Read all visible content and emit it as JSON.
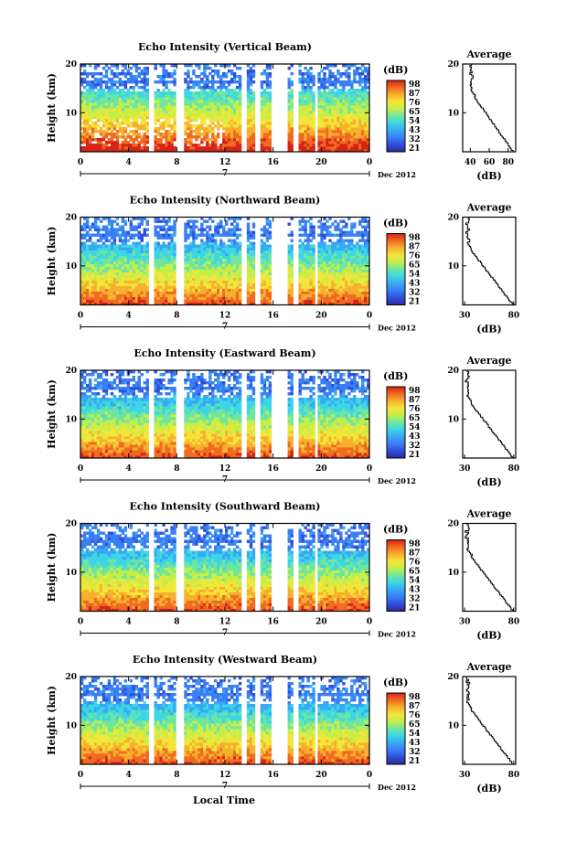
{
  "figure": {
    "xlabel": "Local Time",
    "date_label": "Dec 2012",
    "day_label": "7"
  },
  "colorbar": {
    "unit": "(dB)",
    "colors": [
      "#2b2a9c",
      "#2f4fd8",
      "#3a7ef5",
      "#39a8f2",
      "#3cd6e6",
      "#6fe6a0",
      "#c4ee4a",
      "#f2e63a",
      "#f7b02e",
      "#f06a22",
      "#d62418"
    ]
  },
  "chart_data": [
    {
      "type": "heatmap",
      "title": "Echo Intensity (Vertical Beam)",
      "xlabel": "",
      "ylabel": "Height (km)",
      "x_ticks": [
        "0",
        "4",
        "8",
        "12",
        "16",
        "20",
        "0"
      ],
      "y_ticks": [
        "20",
        "10"
      ],
      "xlim": [
        0,
        24
      ],
      "ylim": [
        2,
        20
      ],
      "colorbar_ticks": [
        "98",
        "87",
        "76",
        "65",
        "54",
        "43",
        "32",
        "21"
      ],
      "gaps_hours": [
        [
          5.6,
          6.2
        ],
        [
          8.0,
          8.5
        ],
        [
          13.3,
          13.8
        ],
        [
          14.6,
          15.0
        ],
        [
          15.8,
          17.3
        ],
        [
          17.7,
          18.1
        ],
        [
          19.4,
          19.8
        ]
      ],
      "profile": {
        "title": "Average",
        "xlabel": "(dB)",
        "x_ticks": [
          "40",
          "60",
          "80"
        ],
        "xlim": [
          32,
          88
        ],
        "y_ticks": [
          "20",
          "10"
        ],
        "surface_value": 86,
        "top_value": 40
      }
    },
    {
      "type": "heatmap",
      "title": "Echo Intensity (Northward Beam)",
      "xlabel": "",
      "ylabel": "Height (km)",
      "x_ticks": [
        "0",
        "4",
        "8",
        "12",
        "16",
        "20",
        "0"
      ],
      "y_ticks": [
        "20",
        "10"
      ],
      "xlim": [
        0,
        24
      ],
      "ylim": [
        2,
        20
      ],
      "colorbar_ticks": [
        "98",
        "87",
        "76",
        "65",
        "54",
        "43",
        "32",
        "21"
      ],
      "gaps_hours": [
        [
          5.6,
          6.2
        ],
        [
          8.0,
          8.5
        ],
        [
          13.3,
          13.8
        ],
        [
          14.6,
          15.0
        ],
        [
          15.8,
          17.3
        ],
        [
          17.7,
          18.1
        ],
        [
          19.4,
          19.8
        ]
      ],
      "profile": {
        "title": "Average",
        "xlabel": "(dB)",
        "x_ticks": [
          "30",
          "80"
        ],
        "xlim": [
          28,
          82
        ],
        "y_ticks": [
          "20",
          "10"
        ],
        "surface_value": 80,
        "top_value": 32
      }
    },
    {
      "type": "heatmap",
      "title": "Echo Intensity (Eastward Beam)",
      "xlabel": "",
      "ylabel": "Height (km)",
      "x_ticks": [
        "0",
        "4",
        "8",
        "12",
        "16",
        "20",
        "0"
      ],
      "y_ticks": [
        "20",
        "10"
      ],
      "xlim": [
        0,
        24
      ],
      "ylim": [
        2,
        20
      ],
      "colorbar_ticks": [
        "98",
        "87",
        "76",
        "65",
        "54",
        "43",
        "32",
        "21"
      ],
      "gaps_hours": [
        [
          5.6,
          6.2
        ],
        [
          8.0,
          8.5
        ],
        [
          13.3,
          13.8
        ],
        [
          14.6,
          15.0
        ],
        [
          15.8,
          17.3
        ],
        [
          17.7,
          18.1
        ],
        [
          19.4,
          19.8
        ]
      ],
      "profile": {
        "title": "Average",
        "xlabel": "(dB)",
        "x_ticks": [
          "30",
          "80"
        ],
        "xlim": [
          28,
          82
        ],
        "y_ticks": [
          "20",
          "10"
        ],
        "surface_value": 80,
        "top_value": 32
      }
    },
    {
      "type": "heatmap",
      "title": "Echo Intensity (Southward Beam)",
      "xlabel": "",
      "ylabel": "Height (km)",
      "x_ticks": [
        "0",
        "4",
        "8",
        "12",
        "16",
        "20",
        "0"
      ],
      "y_ticks": [
        "20",
        "10"
      ],
      "xlim": [
        0,
        24
      ],
      "ylim": [
        2,
        20
      ],
      "colorbar_ticks": [
        "98",
        "87",
        "76",
        "65",
        "54",
        "43",
        "32",
        "21"
      ],
      "gaps_hours": [
        [
          5.6,
          6.2
        ],
        [
          8.0,
          8.5
        ],
        [
          13.3,
          13.8
        ],
        [
          14.6,
          15.0
        ],
        [
          15.8,
          17.3
        ],
        [
          17.7,
          18.1
        ],
        [
          19.4,
          19.8
        ]
      ],
      "profile": {
        "title": "Average",
        "xlabel": "(dB)",
        "x_ticks": [
          "30",
          "80"
        ],
        "xlim": [
          28,
          82
        ],
        "y_ticks": [
          "20",
          "10"
        ],
        "surface_value": 80,
        "top_value": 32
      }
    },
    {
      "type": "heatmap",
      "title": "Echo Intensity (Westward Beam)",
      "xlabel": "Local Time",
      "ylabel": "Height (km)",
      "x_ticks": [
        "0",
        "4",
        "8",
        "12",
        "16",
        "20",
        "0"
      ],
      "y_ticks": [
        "20",
        "10"
      ],
      "xlim": [
        0,
        24
      ],
      "ylim": [
        2,
        20
      ],
      "colorbar_ticks": [
        "98",
        "87",
        "76",
        "65",
        "54",
        "43",
        "32",
        "21"
      ],
      "gaps_hours": [
        [
          5.6,
          6.2
        ],
        [
          8.0,
          8.5
        ],
        [
          13.3,
          13.8
        ],
        [
          14.6,
          15.0
        ],
        [
          15.8,
          17.3
        ],
        [
          17.7,
          18.1
        ],
        [
          19.4,
          19.8
        ]
      ],
      "profile": {
        "title": "Average",
        "xlabel": "(dB)",
        "x_ticks": [
          "30",
          "80"
        ],
        "xlim": [
          28,
          82
        ],
        "y_ticks": [
          "20",
          "10"
        ],
        "surface_value": 80,
        "top_value": 32
      }
    }
  ]
}
